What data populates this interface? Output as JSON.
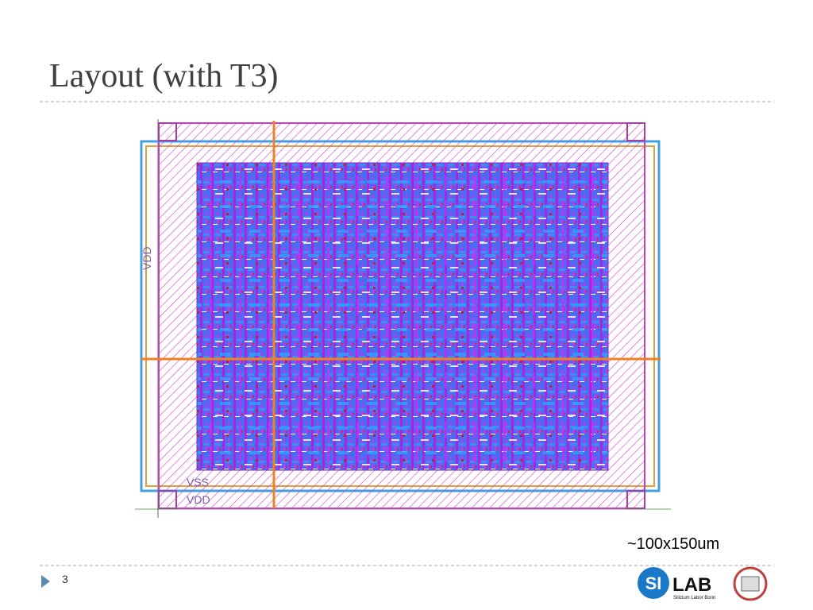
{
  "title": "Layout (with T3)",
  "caption": "~100x150um",
  "page_number": "3",
  "logo": {
    "si": "SI",
    "lab": "LAB",
    "subtitle": "Silizium Labor Bonn"
  },
  "layout_labels": [
    "VDD",
    "VSS",
    "VDD"
  ]
}
